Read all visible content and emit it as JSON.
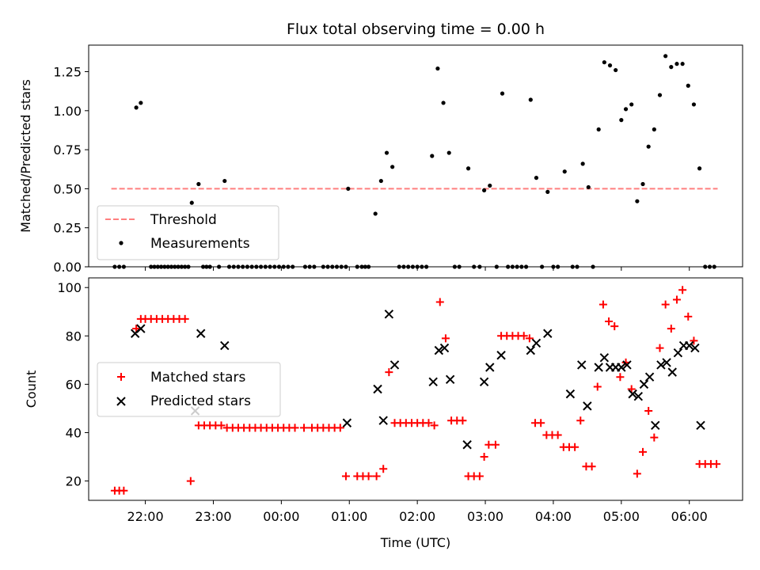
{
  "title": "Flux total observing time = 0.00 h",
  "xlabel": "Time (UTC)",
  "chart_data": [
    {
      "type": "scatter",
      "ylabel": "Matched/Predicted stars",
      "ylim": [
        0,
        1.42
      ],
      "yticks": [
        "0.00",
        "0.25",
        "0.50",
        "0.75",
        "1.00",
        "1.25"
      ],
      "threshold": {
        "name": "Threshold",
        "value": 0.5,
        "x_start": "21:30",
        "x_end": "06:25",
        "color": "#ff7f7f"
      },
      "legend": {
        "position": "lower-left",
        "entries": [
          "Threshold",
          "Measurements"
        ]
      },
      "series": [
        {
          "name": "Measurements",
          "color": "#000000",
          "points": [
            [
              "21:33",
              0
            ],
            [
              "21:37",
              0
            ],
            [
              "21:41",
              0
            ],
            [
              "21:52",
              1.02
            ],
            [
              "21:56",
              1.05
            ],
            [
              "22:05",
              0
            ],
            [
              "22:08",
              0
            ],
            [
              "22:11",
              0
            ],
            [
              "22:14",
              0
            ],
            [
              "22:17",
              0
            ],
            [
              "22:20",
              0
            ],
            [
              "22:23",
              0
            ],
            [
              "22:26",
              0
            ],
            [
              "22:29",
              0
            ],
            [
              "22:32",
              0
            ],
            [
              "22:35",
              0
            ],
            [
              "22:38",
              0
            ],
            [
              "22:41",
              0.41
            ],
            [
              "22:47",
              0.53
            ],
            [
              "22:51",
              0
            ],
            [
              "22:54",
              0
            ],
            [
              "22:57",
              0
            ],
            [
              "23:05",
              0
            ],
            [
              "23:10",
              0.55
            ],
            [
              "23:14",
              0
            ],
            [
              "23:18",
              0
            ],
            [
              "23:22",
              0
            ],
            [
              "23:26",
              0
            ],
            [
              "23:30",
              0
            ],
            [
              "23:34",
              0
            ],
            [
              "23:38",
              0
            ],
            [
              "23:42",
              0
            ],
            [
              "23:46",
              0
            ],
            [
              "23:50",
              0
            ],
            [
              "23:54",
              0
            ],
            [
              "23:58",
              0
            ],
            [
              "00:02",
              0
            ],
            [
              "00:06",
              0
            ],
            [
              "00:10",
              0
            ],
            [
              "00:21",
              0
            ],
            [
              "00:25",
              0
            ],
            [
              "00:29",
              0
            ],
            [
              "00:37",
              0
            ],
            [
              "00:41",
              0
            ],
            [
              "00:45",
              0
            ],
            [
              "00:49",
              0
            ],
            [
              "00:53",
              0
            ],
            [
              "00:57",
              0
            ],
            [
              "00:59",
              0.5
            ],
            [
              "01:07",
              0
            ],
            [
              "01:11",
              0
            ],
            [
              "01:14",
              0
            ],
            [
              "01:17",
              0
            ],
            [
              "01:23",
              0.34
            ],
            [
              "01:28",
              0.55
            ],
            [
              "01:33",
              0.73
            ],
            [
              "01:38",
              0.64
            ],
            [
              "01:44",
              0
            ],
            [
              "01:48",
              0
            ],
            [
              "01:52",
              0
            ],
            [
              "01:56",
              0
            ],
            [
              "02:00",
              0
            ],
            [
              "02:04",
              0
            ],
            [
              "02:08",
              0
            ],
            [
              "02:13",
              0.71
            ],
            [
              "02:18",
              1.27
            ],
            [
              "02:23",
              1.05
            ],
            [
              "02:28",
              0.73
            ],
            [
              "02:33",
              0
            ],
            [
              "02:37",
              0
            ],
            [
              "02:45",
              0.63
            ],
            [
              "02:50",
              0
            ],
            [
              "02:55",
              0
            ],
            [
              "02:59",
              0.49
            ],
            [
              "03:04",
              0.52
            ],
            [
              "03:10",
              0
            ],
            [
              "03:15",
              1.11
            ],
            [
              "03:20",
              0
            ],
            [
              "03:24",
              0
            ],
            [
              "03:28",
              0
            ],
            [
              "03:32",
              0
            ],
            [
              "03:36",
              0
            ],
            [
              "03:40",
              1.07
            ],
            [
              "03:45",
              0.57
            ],
            [
              "03:50",
              0
            ],
            [
              "03:55",
              0.48
            ],
            [
              "04:00",
              0
            ],
            [
              "04:04",
              0
            ],
            [
              "04:10",
              0.61
            ],
            [
              "04:17",
              0
            ],
            [
              "04:21",
              0
            ],
            [
              "04:26",
              0.66
            ],
            [
              "04:31",
              0.51
            ],
            [
              "04:35",
              0
            ],
            [
              "04:40",
              0.88
            ],
            [
              "04:45",
              1.31
            ],
            [
              "04:50",
              1.29
            ],
            [
              "04:55",
              1.26
            ],
            [
              "05:00",
              0.94
            ],
            [
              "05:04",
              1.01
            ],
            [
              "05:09",
              1.04
            ],
            [
              "05:14",
              0.42
            ],
            [
              "05:19",
              0.53
            ],
            [
              "05:24",
              0.77
            ],
            [
              "05:29",
              0.88
            ],
            [
              "05:34",
              1.1
            ],
            [
              "05:39",
              1.35
            ],
            [
              "05:44",
              1.28
            ],
            [
              "05:49",
              1.3
            ],
            [
              "05:54",
              1.3
            ],
            [
              "05:59",
              1.16
            ],
            [
              "06:04",
              1.04
            ],
            [
              "06:09",
              0.63
            ],
            [
              "06:14",
              0
            ],
            [
              "06:18",
              0
            ],
            [
              "06:22",
              0
            ]
          ]
        }
      ]
    },
    {
      "type": "scatter",
      "ylabel": "Count",
      "ylim": [
        12,
        104
      ],
      "yticks": [
        "20",
        "40",
        "60",
        "80",
        "100"
      ],
      "xticks": [
        "22:00",
        "23:00",
        "00:00",
        "01:00",
        "02:00",
        "03:00",
        "04:00",
        "05:00",
        "06:00"
      ],
      "legend": {
        "position": "center-left",
        "entries": [
          "Matched stars",
          "Predicted stars"
        ]
      },
      "series": [
        {
          "name": "Matched stars",
          "marker": "plus",
          "color": "#ff0000",
          "points": [
            [
              "21:33",
              16
            ],
            [
              "21:37",
              16
            ],
            [
              "21:41",
              16
            ],
            [
              "21:52",
              83
            ],
            [
              "21:56",
              87
            ],
            [
              "22:00",
              87
            ],
            [
              "22:05",
              87
            ],
            [
              "22:10",
              87
            ],
            [
              "22:15",
              87
            ],
            [
              "22:20",
              87
            ],
            [
              "22:25",
              87
            ],
            [
              "22:30",
              87
            ],
            [
              "22:35",
              87
            ],
            [
              "22:40",
              20
            ],
            [
              "22:47",
              43
            ],
            [
              "22:52",
              43
            ],
            [
              "22:57",
              43
            ],
            [
              "23:02",
              43
            ],
            [
              "23:07",
              43
            ],
            [
              "23:12",
              42
            ],
            [
              "23:17",
              42
            ],
            [
              "23:22",
              42
            ],
            [
              "23:27",
              42
            ],
            [
              "23:32",
              42
            ],
            [
              "23:37",
              42
            ],
            [
              "23:42",
              42
            ],
            [
              "23:47",
              42
            ],
            [
              "23:52",
              42
            ],
            [
              "23:57",
              42
            ],
            [
              "00:02",
              42
            ],
            [
              "00:07",
              42
            ],
            [
              "00:12",
              42
            ],
            [
              "00:20",
              42
            ],
            [
              "00:27",
              42
            ],
            [
              "00:32",
              42
            ],
            [
              "00:37",
              42
            ],
            [
              "00:42",
              42
            ],
            [
              "00:47",
              42
            ],
            [
              "00:52",
              42
            ],
            [
              "00:57",
              22
            ],
            [
              "01:07",
              22
            ],
            [
              "01:12",
              22
            ],
            [
              "01:17",
              22
            ],
            [
              "01:24",
              22
            ],
            [
              "01:30",
              25
            ],
            [
              "01:35",
              65
            ],
            [
              "01:40",
              44
            ],
            [
              "01:45",
              44
            ],
            [
              "01:50",
              44
            ],
            [
              "01:55",
              44
            ],
            [
              "02:00",
              44
            ],
            [
              "02:05",
              44
            ],
            [
              "02:10",
              44
            ],
            [
              "02:15",
              43
            ],
            [
              "02:20",
              94
            ],
            [
              "02:25",
              79
            ],
            [
              "02:30",
              45
            ],
            [
              "02:35",
              45
            ],
            [
              "02:40",
              45
            ],
            [
              "02:45",
              22
            ],
            [
              "02:50",
              22
            ],
            [
              "02:55",
              22
            ],
            [
              "02:59",
              30
            ],
            [
              "03:03",
              35
            ],
            [
              "03:09",
              35
            ],
            [
              "03:14",
              80
            ],
            [
              "03:19",
              80
            ],
            [
              "03:24",
              80
            ],
            [
              "03:29",
              80
            ],
            [
              "03:34",
              80
            ],
            [
              "03:39",
              79
            ],
            [
              "03:44",
              44
            ],
            [
              "03:49",
              44
            ],
            [
              "03:54",
              39
            ],
            [
              "03:59",
              39
            ],
            [
              "04:04",
              39
            ],
            [
              "04:09",
              34
            ],
            [
              "04:14",
              34
            ],
            [
              "04:19",
              34
            ],
            [
              "04:24",
              45
            ],
            [
              "04:29",
              26
            ],
            [
              "04:34",
              26
            ],
            [
              "04:39",
              59
            ],
            [
              "04:44",
              93
            ],
            [
              "04:49",
              86
            ],
            [
              "04:54",
              84
            ],
            [
              "04:59",
              63
            ],
            [
              "05:04",
              69
            ],
            [
              "05:09",
              58
            ],
            [
              "05:14",
              23
            ],
            [
              "05:19",
              32
            ],
            [
              "05:24",
              49
            ],
            [
              "05:29",
              38
            ],
            [
              "05:34",
              75
            ],
            [
              "05:39",
              93
            ],
            [
              "05:44",
              83
            ],
            [
              "05:49",
              95
            ],
            [
              "05:54",
              99
            ],
            [
              "05:59",
              88
            ],
            [
              "06:04",
              78
            ],
            [
              "06:09",
              27
            ],
            [
              "06:14",
              27
            ],
            [
              "06:19",
              27
            ],
            [
              "06:24",
              27
            ]
          ]
        },
        {
          "name": "Predicted stars",
          "marker": "x",
          "color": "#000000",
          "points": [
            [
              "21:51",
              81
            ],
            [
              "21:56",
              83
            ],
            [
              "22:44",
              49
            ],
            [
              "22:49",
              81
            ],
            [
              "23:10",
              76
            ],
            [
              "00:58",
              44
            ],
            [
              "01:25",
              58
            ],
            [
              "01:30",
              45
            ],
            [
              "01:35",
              89
            ],
            [
              "01:40",
              68
            ],
            [
              "02:14",
              61
            ],
            [
              "02:19",
              74
            ],
            [
              "02:24",
              75
            ],
            [
              "02:29",
              62
            ],
            [
              "02:44",
              35
            ],
            [
              "02:59",
              61
            ],
            [
              "03:04",
              67
            ],
            [
              "03:14",
              72
            ],
            [
              "03:40",
              74
            ],
            [
              "03:45",
              77
            ],
            [
              "03:55",
              81
            ],
            [
              "04:15",
              56
            ],
            [
              "04:25",
              68
            ],
            [
              "04:30",
              51
            ],
            [
              "04:40",
              67
            ],
            [
              "04:45",
              71
            ],
            [
              "04:50",
              67
            ],
            [
              "04:55",
              67
            ],
            [
              "05:00",
              67
            ],
            [
              "05:05",
              68
            ],
            [
              "05:10",
              56
            ],
            [
              "05:15",
              55
            ],
            [
              "05:20",
              60
            ],
            [
              "05:25",
              63
            ],
            [
              "05:30",
              43
            ],
            [
              "05:35",
              68
            ],
            [
              "05:40",
              69
            ],
            [
              "05:45",
              65
            ],
            [
              "05:50",
              73
            ],
            [
              "05:55",
              76
            ],
            [
              "06:00",
              76
            ],
            [
              "06:05",
              75
            ],
            [
              "06:10",
              43
            ]
          ]
        }
      ]
    }
  ]
}
